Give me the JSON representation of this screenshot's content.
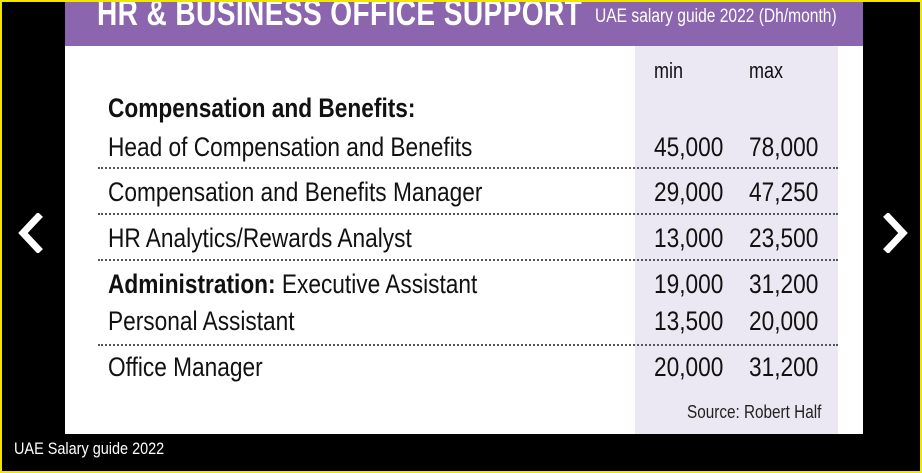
{
  "banner": {
    "title": "HR & BUSINESS OFFICE SUPPORT",
    "subtitle": "UAE salary guide 2022 (Dh/month)"
  },
  "columns": {
    "min": "min",
    "max": "max"
  },
  "table": {
    "section1_title": "Compensation and Benefits:",
    "rows": [
      {
        "prefix": "",
        "title": "Head of Compensation and Benefits",
        "min": "45,000",
        "max": "78,000"
      },
      {
        "prefix": "",
        "title": "Compensation and Benefits Manager",
        "min": "29,000",
        "max": "47,250"
      },
      {
        "prefix": "",
        "title": "HR Analytics/Rewards Analyst",
        "min": "13,000",
        "max": "23,500"
      },
      {
        "prefix": "Administration:",
        "title": " Executive Assistant",
        "min": "19,000",
        "max": "31,200"
      },
      {
        "prefix": "",
        "title": "Personal Assistant",
        "min": "13,500",
        "max": "20,000"
      },
      {
        "prefix": "",
        "title": "Office Manager",
        "min": "20,000",
        "max": "31,200"
      }
    ]
  },
  "source": "Source: Robert Half",
  "caption": "UAE Salary guide 2022",
  "nav": {
    "prev_icon": "chevron-left-icon",
    "next_icon": "chevron-right-icon"
  }
}
